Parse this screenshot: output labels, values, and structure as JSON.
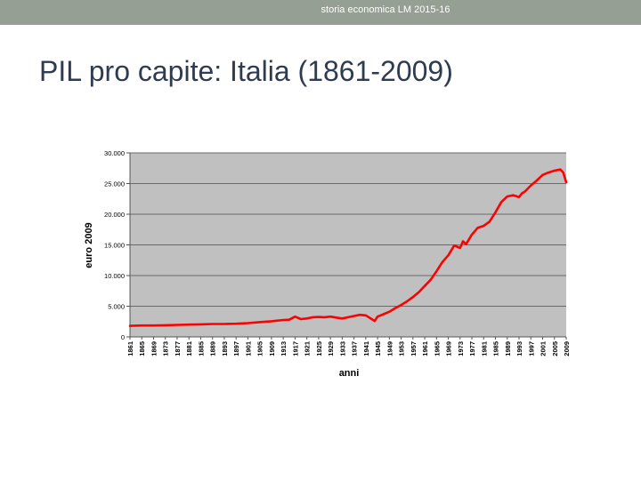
{
  "header": {
    "text": "storia economica LM  2015-16"
  },
  "slide": {
    "title": "PIL pro capite: Italia (1861-2009)"
  },
  "colors": {
    "header_bg": "#969f93",
    "plot_bg": "#c0c0c0",
    "series": "#ff0000",
    "title": "#2f3c4f"
  },
  "chart_data": {
    "type": "line",
    "title": "",
    "xlabel": "anni",
    "ylabel": "euro 2009",
    "xlim": [
      1861,
      2009
    ],
    "ylim": [
      0,
      30000
    ],
    "yticks": [
      0,
      5000,
      10000,
      15000,
      20000,
      25000,
      30000
    ],
    "ytick_labels": [
      "0",
      "5.000",
      "10.000",
      "15.000",
      "20.000",
      "25.000",
      "30.000"
    ],
    "xtick_labels": [
      "1861",
      "1865",
      "1869",
      "1873",
      "1877",
      "1881",
      "1885",
      "1889",
      "1893",
      "1897",
      "1901",
      "1905",
      "1909",
      "1913",
      "1917",
      "1921",
      "1925",
      "1929",
      "1933",
      "1937",
      "1941",
      "1945",
      "1949",
      "1953",
      "1957",
      "1961",
      "1965",
      "1969",
      "1973",
      "1977",
      "1981",
      "1985",
      "1989",
      "1993",
      "1997",
      "2001",
      "2005",
      "2009"
    ],
    "grid": true,
    "legend": "none",
    "series": [
      {
        "color": "#ff0000",
        "x": [
          1861,
          1865,
          1869,
          1873,
          1877,
          1881,
          1885,
          1889,
          1893,
          1897,
          1901,
          1905,
          1909,
          1913,
          1915,
          1917,
          1919,
          1921,
          1923,
          1925,
          1927,
          1929,
          1931,
          1933,
          1935,
          1937,
          1939,
          1941,
          1943,
          1944,
          1945,
          1947,
          1949,
          1951,
          1953,
          1955,
          1957,
          1959,
          1961,
          1963,
          1965,
          1967,
          1969,
          1971,
          1973,
          1974,
          1975,
          1977,
          1979,
          1981,
          1983,
          1985,
          1987,
          1989,
          1991,
          1993,
          1994,
          1995,
          1997,
          1999,
          2001,
          2003,
          2005,
          2007,
          2008,
          2009
        ],
        "y": [
          1800,
          1850,
          1850,
          1900,
          1950,
          2000,
          2050,
          2100,
          2100,
          2150,
          2250,
          2400,
          2550,
          2750,
          2800,
          3300,
          2900,
          3000,
          3200,
          3250,
          3200,
          3300,
          3150,
          3000,
          3200,
          3400,
          3600,
          3500,
          2900,
          2600,
          3300,
          3700,
          4100,
          4700,
          5200,
          5800,
          6500,
          7300,
          8300,
          9300,
          10700,
          12200,
          13300,
          14900,
          14500,
          15600,
          15100,
          16700,
          17800,
          18100,
          18800,
          20300,
          22000,
          22900,
          23100,
          22800,
          23400,
          23700,
          24700,
          25500,
          26400,
          26800,
          27100,
          27300,
          26800,
          25200
        ]
      }
    ]
  }
}
